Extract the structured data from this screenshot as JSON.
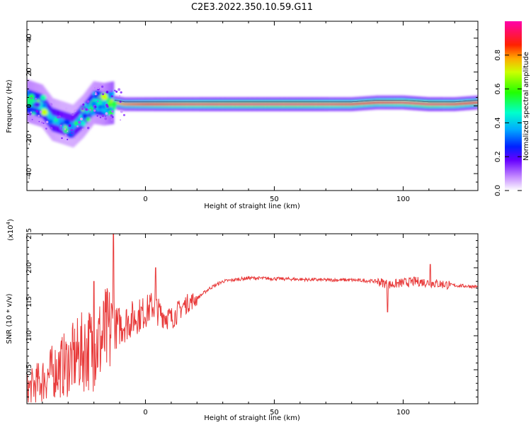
{
  "chart_data": [
    {
      "type": "heatmap",
      "title": "C2E3.2022.350.10.59.G11",
      "xlabel": "Height of straight line (km)",
      "ylabel": "Frequency (Hz)",
      "xlim": [
        -46,
        129
      ],
      "ylim": [
        -50,
        50
      ],
      "xticks": [
        "0",
        "50",
        "100"
      ],
      "yticks": [
        "40",
        "20",
        "0",
        "-20",
        "-40"
      ],
      "colorbar": {
        "label": "Normalized spectral amplitude",
        "range": [
          0,
          1
        ],
        "ticks": [
          "0.0",
          "0.2",
          "0.4",
          "0.6",
          "0.8"
        ]
      },
      "ridge": {
        "description_points_x": [
          -44,
          -40,
          -36,
          -32,
          -28,
          -24,
          -20,
          -16,
          -12,
          -8,
          0,
          10,
          20,
          40,
          60,
          80,
          90,
          100,
          110,
          120,
          129
        ],
        "frequency_hz": [
          2,
          0,
          -8,
          -10,
          -12,
          -6,
          2,
          1,
          2,
          1,
          1,
          1,
          1,
          1,
          1,
          1,
          2,
          2,
          1,
          1,
          2
        ],
        "amplitude": [
          0.5,
          0.45,
          0.4,
          0.35,
          0.35,
          0.4,
          0.45,
          0.5,
          0.75,
          0.8,
          0.85,
          0.9,
          0.92,
          0.95,
          0.95,
          0.9,
          0.88,
          0.92,
          0.95,
          0.9,
          0.85
        ]
      }
    },
    {
      "type": "line",
      "xlabel": "Height of straight line (km)",
      "ylabel": "SNR (10 * v/v)",
      "yscale_label": "(x10",
      "yscale_exp": "4",
      "xlim": [
        -46,
        129
      ],
      "ylim": [
        0,
        2.5
      ],
      "xticks": [
        "0",
        "50",
        "100"
      ],
      "yticks": [
        "0.5",
        "1.0",
        "1.5",
        "2.0",
        "2.5"
      ],
      "color": "#e83a3a",
      "series": [
        {
          "x": [
            -46,
            -40,
            -35,
            -30,
            -25,
            -20,
            -15,
            -12,
            -10,
            -5,
            0,
            3,
            5,
            10,
            15,
            20,
            25,
            30,
            40,
            50,
            60,
            70,
            80,
            90,
            95,
            100,
            105,
            110,
            115,
            120,
            129
          ],
          "y": [
            0.2,
            0.35,
            0.5,
            0.6,
            0.75,
            0.85,
            1.0,
            1.1,
            1.15,
            1.25,
            1.35,
            1.45,
            1.35,
            1.25,
            1.45,
            1.55,
            1.7,
            1.8,
            1.85,
            1.84,
            1.83,
            1.82,
            1.82,
            1.8,
            1.75,
            1.78,
            1.8,
            1.78,
            1.76,
            1.74,
            1.72
          ]
        }
      ]
    }
  ]
}
